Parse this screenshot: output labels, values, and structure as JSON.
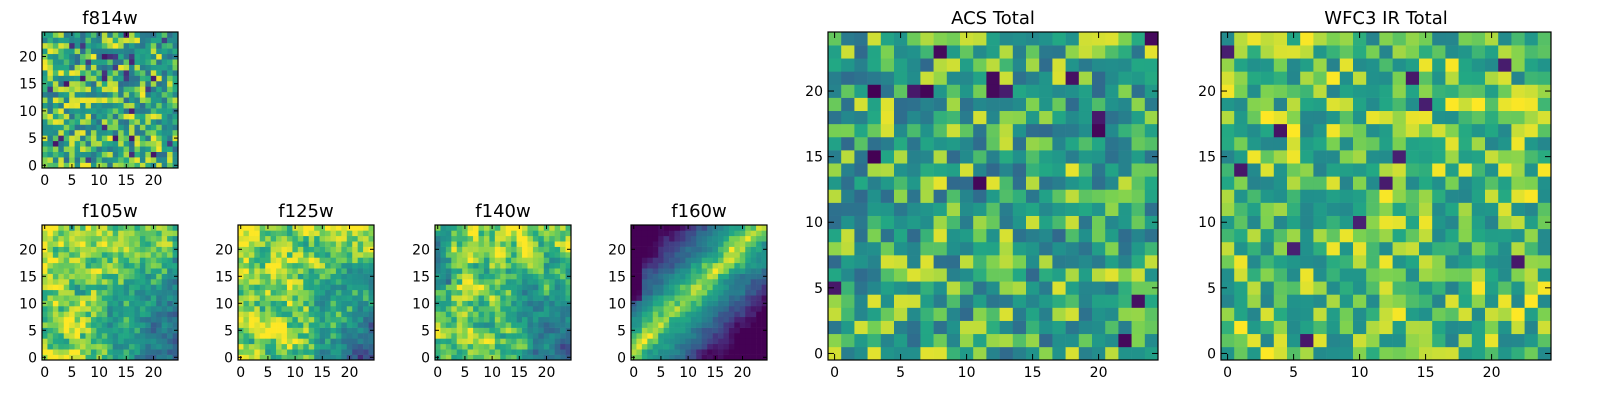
{
  "chart_data": [
    {
      "type": "heatmap",
      "title": "f814w",
      "x_ticks": [
        "0",
        "5",
        "10",
        "15",
        "20"
      ],
      "y_ticks": [
        "0",
        "5",
        "10",
        "15",
        "20"
      ],
      "grid_size": 25,
      "xlim": [
        -0.5,
        24.5
      ],
      "ylim": [
        -0.5,
        24.5
      ],
      "colormap": "viridis",
      "pattern": "uniform noise"
    },
    {
      "type": "heatmap",
      "title": "f105w",
      "x_ticks": [
        "0",
        "5",
        "10",
        "15",
        "20"
      ],
      "y_ticks": [
        "0",
        "5",
        "10",
        "15",
        "20"
      ],
      "grid_size": 25,
      "xlim": [
        -0.5,
        24.5
      ],
      "ylim": [
        -0.5,
        24.5
      ],
      "colormap": "viridis",
      "pattern": "bright toward lower-left, darker patches lower-right"
    },
    {
      "type": "heatmap",
      "title": "f125w",
      "x_ticks": [
        "0",
        "5",
        "10",
        "15",
        "20"
      ],
      "y_ticks": [
        "0",
        "5",
        "10",
        "15",
        "20"
      ],
      "grid_size": 25,
      "xlim": [
        -0.5,
        24.5
      ],
      "ylim": [
        -0.5,
        24.5
      ],
      "colormap": "viridis",
      "pattern": "bright toward lower-left, darker patches lower-right"
    },
    {
      "type": "heatmap",
      "title": "f140w",
      "x_ticks": [
        "0",
        "5",
        "10",
        "15",
        "20"
      ],
      "y_ticks": [
        "0",
        "5",
        "10",
        "15",
        "20"
      ],
      "grid_size": 25,
      "xlim": [
        -0.5,
        24.5
      ],
      "ylim": [
        -0.5,
        24.5
      ],
      "colormap": "viridis",
      "pattern": "mixed, dark lower-right"
    },
    {
      "type": "heatmap",
      "title": "f160w",
      "x_ticks": [
        "0",
        "5",
        "10",
        "15",
        "20"
      ],
      "y_ticks": [
        "0",
        "5",
        "10",
        "15",
        "20"
      ],
      "grid_size": 25,
      "xlim": [
        -0.5,
        24.5
      ],
      "ylim": [
        -0.5,
        24.5
      ],
      "colormap": "viridis",
      "pattern": "bright diagonal band from lower-left to upper-right, dark corners"
    },
    {
      "type": "heatmap",
      "title": "ACS Total",
      "x_ticks": [
        "0",
        "5",
        "10",
        "15",
        "20"
      ],
      "y_ticks": [
        "0",
        "5",
        "10",
        "15",
        "20"
      ],
      "grid_size": 25,
      "xlim": [
        -0.5,
        24.5
      ],
      "ylim": [
        -0.5,
        24.5
      ],
      "colormap": "viridis",
      "pattern": "uniform noise with scattered dark pixels"
    },
    {
      "type": "heatmap",
      "title": "WFC3 IR Total",
      "x_ticks": [
        "0",
        "5",
        "10",
        "15",
        "20"
      ],
      "y_ticks": [
        "0",
        "5",
        "10",
        "15",
        "20"
      ],
      "grid_size": 25,
      "xlim": [
        -0.5,
        24.5
      ],
      "ylim": [
        -0.5,
        24.5
      ],
      "colormap": "viridis",
      "pattern": "mostly bright noise with scattered dark pixels"
    }
  ]
}
